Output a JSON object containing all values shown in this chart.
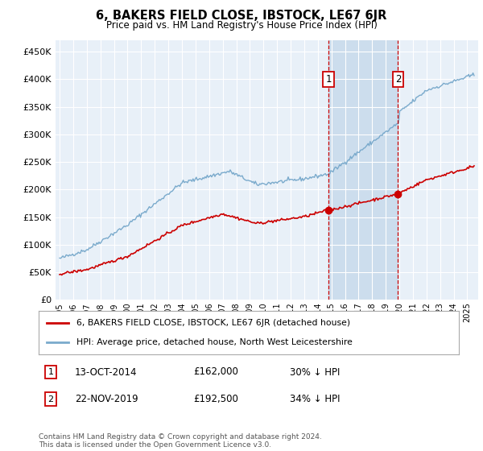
{
  "title": "6, BAKERS FIELD CLOSE, IBSTOCK, LE67 6JR",
  "subtitle": "Price paid vs. HM Land Registry's House Price Index (HPI)",
  "red_line_label": "6, BAKERS FIELD CLOSE, IBSTOCK, LE67 6JR (detached house)",
  "blue_line_label": "HPI: Average price, detached house, North West Leicestershire",
  "annotation1": {
    "label": "1",
    "date": "13-OCT-2014",
    "price": 162000,
    "note": "30% ↓ HPI"
  },
  "annotation2": {
    "label": "2",
    "date": "22-NOV-2019",
    "price": 192500,
    "note": "34% ↓ HPI"
  },
  "footer": "Contains HM Land Registry data © Crown copyright and database right 2024.\nThis data is licensed under the Open Government Licence v3.0.",
  "ylim": [
    0,
    470000
  ],
  "background_color": "#ffffff",
  "plot_bg_color": "#e8f0f8",
  "grid_color": "#ffffff",
  "red_color": "#cc0000",
  "blue_color": "#7aaacc",
  "shaded_color": "#ccdded",
  "ann1_x": 2014.78,
  "ann2_x": 2019.9,
  "ann1_y": 162000,
  "ann2_y": 192500,
  "xmin": 1994.7,
  "xmax": 2025.8
}
